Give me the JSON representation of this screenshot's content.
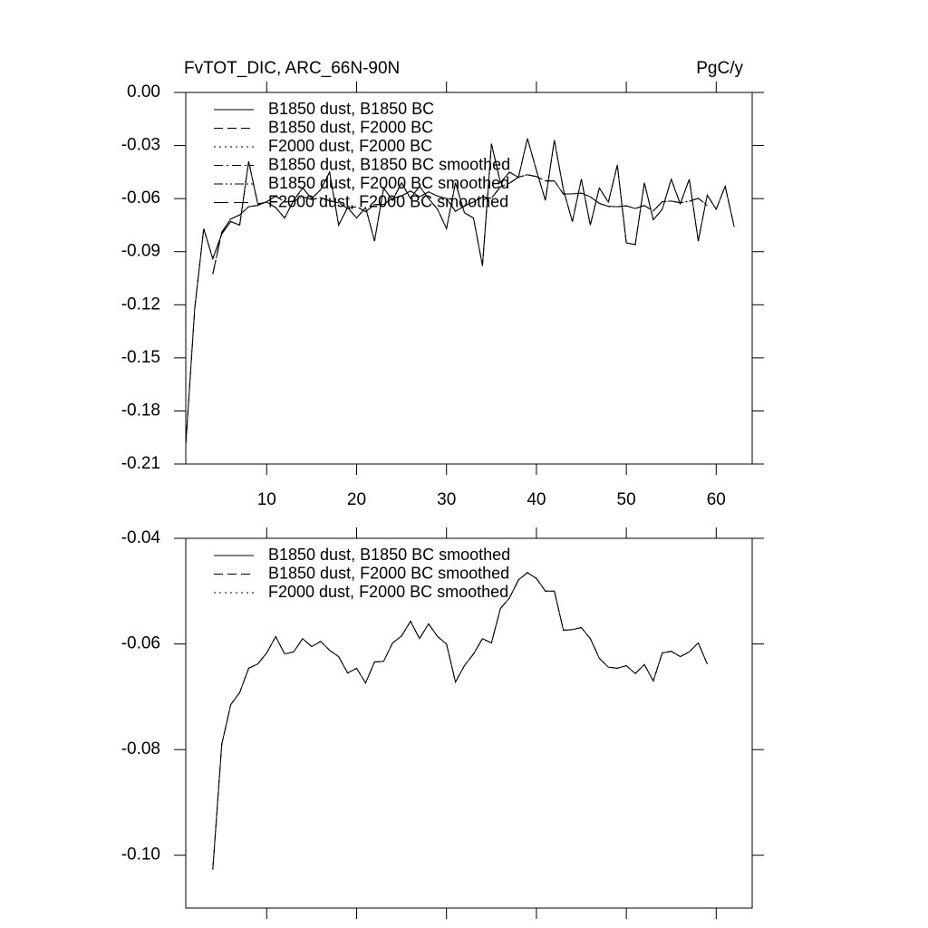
{
  "chart_data": [
    {
      "type": "line",
      "title": "FvTOT_DIC, ARC_66N-90N",
      "units": "PgC/y",
      "x": [
        1,
        2,
        3,
        4,
        5,
        6,
        7,
        8,
        9,
        10,
        11,
        12,
        13,
        14,
        15,
        16,
        17,
        18,
        19,
        20,
        21,
        22,
        23,
        24,
        25,
        26,
        27,
        28,
        29,
        30,
        31,
        32,
        33,
        34,
        35,
        36,
        37,
        38,
        39,
        40,
        41,
        42,
        43,
        44,
        45,
        46,
        47,
        48,
        49,
        50,
        51,
        52,
        53,
        54,
        55,
        56,
        57,
        58,
        59,
        60,
        61,
        62
      ],
      "xlim": [
        1,
        64
      ],
      "xticks": [
        10,
        20,
        30,
        40,
        50,
        60
      ],
      "xtick_labels": true,
      "ylim": [
        -0.21,
        0
      ],
      "yticks": [
        {
          "value": 0,
          "label": "0.00"
        },
        -0.03,
        -0.06,
        -0.09,
        -0.12,
        -0.15,
        -0.18,
        -0.21
      ],
      "grid": false,
      "legend": "upper-left",
      "series": [
        {
          "name": "B1850 dust, B1850 BC",
          "color": "#000000",
          "dash": "solid",
          "values": [
            -0.199,
            -0.122,
            -0.077,
            -0.094,
            -0.08,
            -0.073,
            -0.075,
            -0.039,
            -0.063,
            -0.062,
            -0.065,
            -0.071,
            -0.061,
            -0.054,
            -0.06,
            -0.055,
            -0.045,
            -0.075,
            -0.065,
            -0.071,
            -0.065,
            -0.084,
            -0.054,
            -0.061,
            -0.051,
            -0.06,
            -0.053,
            -0.06,
            -0.066,
            -0.077,
            -0.051,
            -0.068,
            -0.071,
            -0.098,
            -0.029,
            -0.051,
            -0.045,
            -0.048,
            -0.026,
            -0.044,
            -0.061,
            -0.027,
            -0.055,
            -0.073,
            -0.049,
            -0.075,
            -0.054,
            -0.062,
            -0.041,
            -0.085,
            -0.086,
            -0.051,
            -0.072,
            -0.066,
            -0.049,
            -0.063,
            -0.049,
            -0.084,
            -0.058,
            -0.066,
            -0.053,
            -0.076
          ]
        },
        {
          "name": "B1850 dust, F2000 BC",
          "color": "#000000",
          "dash": "dashed",
          "values": [
            -0.199,
            -0.122,
            -0.077,
            -0.094,
            -0.08,
            -0.073,
            -0.075,
            -0.039,
            -0.063,
            -0.062,
            -0.065,
            -0.071,
            -0.061,
            -0.054,
            -0.06,
            -0.055,
            -0.045,
            -0.075,
            -0.065,
            -0.071,
            -0.065,
            -0.084,
            -0.054,
            -0.061,
            -0.051,
            -0.06,
            -0.053,
            -0.06,
            -0.066,
            -0.077,
            -0.051,
            -0.068,
            -0.071,
            -0.098,
            -0.029,
            -0.051,
            -0.045,
            -0.048,
            -0.026,
            -0.044,
            -0.061,
            -0.027,
            -0.055,
            -0.073,
            -0.049,
            -0.075,
            -0.054,
            -0.062,
            -0.041,
            -0.085,
            -0.086,
            -0.051,
            -0.072,
            -0.066,
            -0.049,
            -0.063,
            -0.049,
            -0.084,
            -0.058,
            -0.066,
            -0.053,
            -0.076
          ]
        },
        {
          "name": "F2000 dust, F2000 BC",
          "color": "#000000",
          "dash": "dotted",
          "values": [
            -0.199,
            -0.122,
            -0.077,
            -0.094,
            -0.08,
            -0.073,
            -0.075,
            -0.039,
            -0.063,
            -0.062,
            -0.065,
            -0.071,
            -0.061,
            -0.054,
            -0.06,
            -0.055,
            -0.045,
            -0.075,
            -0.065,
            -0.071,
            -0.065,
            -0.084,
            -0.054,
            -0.061,
            -0.051,
            -0.06,
            -0.053,
            -0.06,
            -0.066,
            -0.077,
            -0.051,
            -0.068,
            -0.071,
            -0.098,
            -0.029,
            -0.051,
            -0.045,
            -0.048,
            -0.026,
            -0.044,
            -0.061,
            -0.027,
            -0.055,
            -0.073,
            -0.049,
            -0.075,
            -0.054,
            -0.062,
            -0.041,
            -0.085,
            -0.086,
            -0.051,
            -0.072,
            -0.066,
            -0.049,
            -0.063,
            -0.049,
            -0.084,
            -0.058,
            -0.066,
            -0.053,
            -0.076
          ]
        },
        {
          "name": "B1850 dust, B1850 BC smoothed",
          "color": "#000000",
          "dash": "dashdot",
          "values": [
            null,
            null,
            null,
            -0.1027,
            -0.079,
            -0.0715,
            -0.0692,
            -0.0646,
            -0.0638,
            -0.0617,
            -0.0586,
            -0.0619,
            -0.0615,
            -0.059,
            -0.0605,
            -0.0595,
            -0.0612,
            -0.0624,
            -0.0655,
            -0.0646,
            -0.0674,
            -0.0634,
            -0.0633,
            -0.0598,
            -0.0585,
            -0.0557,
            -0.059,
            -0.0562,
            -0.0586,
            -0.06,
            -0.0672,
            -0.0641,
            -0.0619,
            -0.059,
            -0.0598,
            -0.0533,
            -0.0513,
            -0.0479,
            -0.0465,
            -0.0476,
            -0.05,
            -0.05,
            -0.0574,
            -0.0573,
            -0.0569,
            -0.059,
            -0.0627,
            -0.0644,
            -0.0646,
            -0.0641,
            -0.0656,
            -0.0639,
            -0.067,
            -0.0617,
            -0.0614,
            -0.0624,
            -0.0615,
            -0.0598,
            -0.0638,
            null,
            null,
            null
          ]
        },
        {
          "name": "B1850 dust, F2000 BC smoothed",
          "color": "#000000",
          "dash": "dashdotdot",
          "values": [
            null,
            null,
            null,
            -0.1027,
            -0.079,
            -0.0715,
            -0.0692,
            -0.0646,
            -0.0638,
            -0.0617,
            -0.0586,
            -0.0619,
            -0.0615,
            -0.059,
            -0.0605,
            -0.0595,
            -0.0612,
            -0.0624,
            -0.0655,
            -0.0646,
            -0.0674,
            -0.0634,
            -0.0633,
            -0.0598,
            -0.0585,
            -0.0557,
            -0.059,
            -0.0562,
            -0.0586,
            -0.06,
            -0.0672,
            -0.0641,
            -0.0619,
            -0.059,
            -0.0598,
            -0.0533,
            -0.0513,
            -0.0479,
            -0.0465,
            -0.0476,
            -0.05,
            -0.05,
            -0.0574,
            -0.0573,
            -0.0569,
            -0.059,
            -0.0627,
            -0.0644,
            -0.0646,
            -0.0641,
            -0.0656,
            -0.0639,
            -0.067,
            -0.0617,
            -0.0614,
            -0.0624,
            -0.0615,
            -0.0598,
            -0.0638,
            null,
            null,
            null
          ]
        },
        {
          "name": "F2000 dust, F2000 BC smoothed",
          "color": "#000000",
          "dash": "longdash",
          "values": [
            null,
            null,
            null,
            -0.1027,
            -0.079,
            -0.0715,
            -0.0692,
            -0.0646,
            -0.0638,
            -0.0617,
            -0.0586,
            -0.0619,
            -0.0615,
            -0.059,
            -0.0605,
            -0.0595,
            -0.0612,
            -0.0624,
            -0.0655,
            -0.0646,
            -0.0674,
            -0.0634,
            -0.0633,
            -0.0598,
            -0.0585,
            -0.0557,
            -0.059,
            -0.0562,
            -0.0586,
            -0.06,
            -0.0672,
            -0.0641,
            -0.0619,
            -0.059,
            -0.0598,
            -0.0533,
            -0.0513,
            -0.0479,
            -0.0465,
            -0.0476,
            -0.05,
            -0.05,
            -0.0574,
            -0.0573,
            -0.0569,
            -0.059,
            -0.0627,
            -0.0644,
            -0.0646,
            -0.0641,
            -0.0656,
            -0.0639,
            -0.067,
            -0.0617,
            -0.0614,
            -0.0624,
            -0.0615,
            -0.0598,
            -0.0638,
            null,
            null,
            null
          ]
        }
      ]
    },
    {
      "type": "line",
      "x": [
        1,
        2,
        3,
        4,
        5,
        6,
        7,
        8,
        9,
        10,
        11,
        12,
        13,
        14,
        15,
        16,
        17,
        18,
        19,
        20,
        21,
        22,
        23,
        24,
        25,
        26,
        27,
        28,
        29,
        30,
        31,
        32,
        33,
        34,
        35,
        36,
        37,
        38,
        39,
        40,
        41,
        42,
        43,
        44,
        45,
        46,
        47,
        48,
        49,
        50,
        51,
        52,
        53,
        54,
        55,
        56,
        57,
        58,
        59,
        60,
        61,
        62
      ],
      "xlim": [
        1,
        64
      ],
      "xticks": [
        10,
        20,
        30,
        40,
        50,
        60
      ],
      "xtick_labels": false,
      "ylim": [
        -0.11,
        -0.04
      ],
      "yticks": [
        -0.04,
        -0.06,
        -0.08,
        {
          "value": -0.1,
          "label": "-0.10"
        }
      ],
      "grid": false,
      "legend": "upper-left",
      "series": [
        {
          "name": "B1850 dust, B1850 BC smoothed",
          "color": "#000000",
          "dash": "solid",
          "values": [
            null,
            null,
            null,
            -0.1027,
            -0.079,
            -0.0715,
            -0.0692,
            -0.0646,
            -0.0638,
            -0.0617,
            -0.0586,
            -0.0619,
            -0.0615,
            -0.059,
            -0.0605,
            -0.0595,
            -0.0612,
            -0.0624,
            -0.0655,
            -0.0646,
            -0.0674,
            -0.0634,
            -0.0633,
            -0.0598,
            -0.0585,
            -0.0557,
            -0.059,
            -0.0562,
            -0.0586,
            -0.06,
            -0.0672,
            -0.0641,
            -0.0619,
            -0.059,
            -0.0598,
            -0.0533,
            -0.0513,
            -0.0479,
            -0.0465,
            -0.0476,
            -0.05,
            -0.05,
            -0.0574,
            -0.0573,
            -0.0569,
            -0.059,
            -0.0627,
            -0.0644,
            -0.0646,
            -0.0641,
            -0.0656,
            -0.0639,
            -0.067,
            -0.0617,
            -0.0614,
            -0.0624,
            -0.0615,
            -0.0598,
            -0.0638,
            null,
            null,
            null
          ]
        },
        {
          "name": "B1850 dust, F2000 BC smoothed",
          "color": "#000000",
          "dash": "dashed",
          "values": [
            null,
            null,
            null,
            -0.1027,
            -0.079,
            -0.0715,
            -0.0692,
            -0.0646,
            -0.0638,
            -0.0617,
            -0.0586,
            -0.0619,
            -0.0615,
            -0.059,
            -0.0605,
            -0.0595,
            -0.0612,
            -0.0624,
            -0.0655,
            -0.0646,
            -0.0674,
            -0.0634,
            -0.0633,
            -0.0598,
            -0.0585,
            -0.0557,
            -0.059,
            -0.0562,
            -0.0586,
            -0.06,
            -0.0672,
            -0.0641,
            -0.0619,
            -0.059,
            -0.0598,
            -0.0533,
            -0.0513,
            -0.0479,
            -0.0465,
            -0.0476,
            -0.05,
            -0.05,
            -0.0574,
            -0.0573,
            -0.0569,
            -0.059,
            -0.0627,
            -0.0644,
            -0.0646,
            -0.0641,
            -0.0656,
            -0.0639,
            -0.067,
            -0.0617,
            -0.0614,
            -0.0624,
            -0.0615,
            -0.0598,
            -0.0638,
            null,
            null,
            null
          ]
        },
        {
          "name": "F2000 dust, F2000 BC smoothed",
          "color": "#000000",
          "dash": "dotted",
          "values": [
            null,
            null,
            null,
            -0.1027,
            -0.079,
            -0.0715,
            -0.0692,
            -0.0646,
            -0.0638,
            -0.0617,
            -0.0586,
            -0.0619,
            -0.0615,
            -0.059,
            -0.0605,
            -0.0595,
            -0.0612,
            -0.0624,
            -0.0655,
            -0.0646,
            -0.0674,
            -0.0634,
            -0.0633,
            -0.0598,
            -0.0585,
            -0.0557,
            -0.059,
            -0.0562,
            -0.0586,
            -0.06,
            -0.0672,
            -0.0641,
            -0.0619,
            -0.059,
            -0.0598,
            -0.0533,
            -0.0513,
            -0.0479,
            -0.0465,
            -0.0476,
            -0.05,
            -0.05,
            -0.0574,
            -0.0573,
            -0.0569,
            -0.059,
            -0.0627,
            -0.0644,
            -0.0646,
            -0.0641,
            -0.0656,
            -0.0639,
            -0.067,
            -0.0617,
            -0.0614,
            -0.0624,
            -0.0615,
            -0.0598,
            -0.0638,
            null,
            null,
            null
          ]
        }
      ]
    }
  ]
}
